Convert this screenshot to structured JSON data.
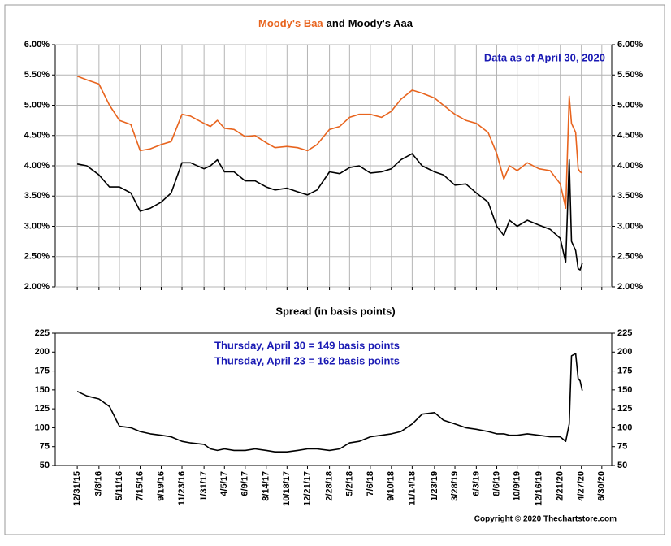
{
  "chart_data": [
    {
      "type": "line",
      "title": [
        "Moody's Baa",
        "and",
        "Moody's Aaa"
      ],
      "annotation": "Data as of April 30, 2020",
      "x": [
        "12/31/15",
        "1/30/16",
        "3/8/16",
        "4/10/16",
        "5/11/16",
        "6/16/16",
        "7/15/16",
        "8/16/16",
        "9/19/16",
        "10/20/16",
        "11/23/16",
        "12/20/16",
        "1/31/17",
        "2/20/17",
        "3/14/17",
        "4/5/17",
        "5/5/17",
        "6/9/17",
        "7/10/17",
        "8/14/17",
        "9/10/17",
        "10/18/17",
        "11/20/17",
        "12/21/17",
        "1/20/18",
        "2/28/18",
        "4/1/18",
        "5/2/18",
        "6/1/18",
        "7/6/18",
        "8/10/18",
        "9/10/18",
        "10/10/18",
        "11/14/18",
        "12/15/18",
        "1/23/19",
        "2/20/19",
        "3/28/19",
        "5/1/19",
        "6/3/19",
        "7/10/19",
        "8/6/19",
        "8/28/19",
        "9/15/19",
        "10/9/19",
        "11/10/19",
        "12/16/19",
        "1/20/20",
        "2/21/20",
        "3/9/20",
        "3/20/20",
        "3/27/20",
        "4/9/20",
        "4/17/20",
        "4/23/20",
        "4/30/20"
      ],
      "series": [
        {
          "name": "Moody's Baa",
          "color": "#e8641e",
          "values": [
            5.48,
            5.42,
            5.35,
            5.0,
            4.75,
            4.68,
            4.25,
            4.28,
            4.35,
            4.4,
            4.85,
            4.82,
            4.7,
            4.65,
            4.75,
            4.62,
            4.6,
            4.48,
            4.5,
            4.38,
            4.3,
            4.32,
            4.3,
            4.25,
            4.35,
            4.6,
            4.65,
            4.8,
            4.85,
            4.85,
            4.8,
            4.9,
            5.1,
            5.25,
            5.2,
            5.12,
            5.0,
            4.85,
            4.75,
            4.7,
            4.55,
            4.2,
            3.78,
            4.0,
            3.92,
            4.05,
            3.95,
            3.92,
            3.7,
            3.3,
            5.15,
            4.7,
            4.55,
            3.95,
            3.9,
            3.88
          ]
        },
        {
          "name": "Moody's Aaa",
          "color": "#000000",
          "values": [
            4.03,
            4.0,
            3.85,
            3.65,
            3.65,
            3.55,
            3.25,
            3.3,
            3.4,
            3.55,
            4.05,
            4.05,
            3.95,
            4.0,
            4.1,
            3.9,
            3.9,
            3.75,
            3.75,
            3.65,
            3.6,
            3.63,
            3.57,
            3.52,
            3.6,
            3.9,
            3.87,
            3.97,
            4.0,
            3.88,
            3.9,
            3.95,
            4.1,
            4.2,
            4.0,
            3.9,
            3.85,
            3.68,
            3.7,
            3.55,
            3.4,
            3.0,
            2.85,
            3.1,
            3.0,
            3.1,
            3.02,
            2.95,
            2.8,
            2.4,
            4.1,
            2.75,
            2.6,
            2.3,
            2.28,
            2.39
          ]
        }
      ],
      "xlim": [
        "10/23/15",
        "7/31/20"
      ],
      "xticks": [
        "12/31/15",
        "3/8/16",
        "5/11/16",
        "7/15/16",
        "9/19/16",
        "11/23/16",
        "1/31/17",
        "4/5/17",
        "6/9/17",
        "8/14/17",
        "10/18/17",
        "12/21/17",
        "2/28/18",
        "5/2/18",
        "7/6/18",
        "9/10/18",
        "11/14/18",
        "1/23/19",
        "3/28/19",
        "6/3/19",
        "8/6/19",
        "10/9/19",
        "12/16/19",
        "2/21/20",
        "4/27/20",
        "6/30/20"
      ],
      "ylim": [
        2,
        6
      ],
      "yticks": [
        {
          "value": 2,
          "label": "2.00%"
        },
        {
          "value": 2.5,
          "label": "2.50%"
        },
        {
          "value": 3,
          "label": "3.00%"
        },
        {
          "value": 3.5,
          "label": "3.50%"
        },
        {
          "value": 4,
          "label": "4.00%"
        },
        {
          "value": 4.5,
          "label": "4.50%"
        },
        {
          "value": 5,
          "label": "5.00%"
        },
        {
          "value": 5.5,
          "label": "5.50%"
        },
        {
          "value": 6,
          "label": "6.00%"
        }
      ],
      "grid": true
    },
    {
      "type": "line",
      "title": "Spread (in basis points)",
      "annotations": [
        "Thursday, April 30 = 149 basis points",
        "Thursday, April 23 = 162 basis points"
      ],
      "x": [
        "12/31/15",
        "1/30/16",
        "3/8/16",
        "4/10/16",
        "5/11/16",
        "6/16/16",
        "7/15/16",
        "8/16/16",
        "9/19/16",
        "10/20/16",
        "11/23/16",
        "12/20/16",
        "1/31/17",
        "2/20/17",
        "3/14/17",
        "4/5/17",
        "5/5/17",
        "6/9/17",
        "7/10/17",
        "8/14/17",
        "9/10/17",
        "10/18/17",
        "11/20/17",
        "12/21/17",
        "1/20/18",
        "2/28/18",
        "4/1/18",
        "5/2/18",
        "6/1/18",
        "7/6/18",
        "8/10/18",
        "9/10/18",
        "10/10/18",
        "11/14/18",
        "12/15/18",
        "1/23/19",
        "2/20/19",
        "3/28/19",
        "5/1/19",
        "6/3/19",
        "7/10/19",
        "8/6/19",
        "8/28/19",
        "9/15/19",
        "10/9/19",
        "11/10/19",
        "12/16/19",
        "1/20/20",
        "2/21/20",
        "3/9/20",
        "3/20/20",
        "3/27/20",
        "4/9/20",
        "4/17/20",
        "4/23/20",
        "4/30/20"
      ],
      "series": [
        {
          "name": "Spread",
          "color": "#000000",
          "values": [
            148,
            142,
            138,
            128,
            102,
            100,
            95,
            92,
            90,
            88,
            82,
            80,
            78,
            72,
            70,
            72,
            70,
            70,
            72,
            70,
            68,
            68,
            70,
            72,
            72,
            70,
            72,
            80,
            82,
            88,
            90,
            92,
            95,
            105,
            118,
            120,
            110,
            105,
            100,
            98,
            95,
            92,
            92,
            90,
            90,
            92,
            90,
            88,
            88,
            82,
            105,
            195,
            198,
            165,
            162,
            149
          ]
        }
      ],
      "xlim": [
        "10/23/15",
        "7/31/20"
      ],
      "xticks": [
        "12/31/15",
        "3/8/16",
        "5/11/16",
        "7/15/16",
        "9/19/16",
        "11/23/16",
        "1/31/17",
        "4/5/17",
        "6/9/17",
        "8/14/17",
        "10/18/17",
        "12/21/17",
        "2/28/18",
        "5/2/18",
        "7/6/18",
        "9/10/18",
        "11/14/18",
        "1/23/19",
        "3/28/19",
        "6/3/19",
        "8/6/19",
        "10/9/19",
        "12/16/19",
        "2/21/20",
        "4/27/20",
        "6/30/20"
      ],
      "ylim": [
        50,
        225
      ],
      "yticks": [
        50,
        75,
        100,
        125,
        150,
        175,
        200,
        225
      ],
      "grid": false
    }
  ],
  "copyright": "Copyright © 2020 Thechartstore.com"
}
